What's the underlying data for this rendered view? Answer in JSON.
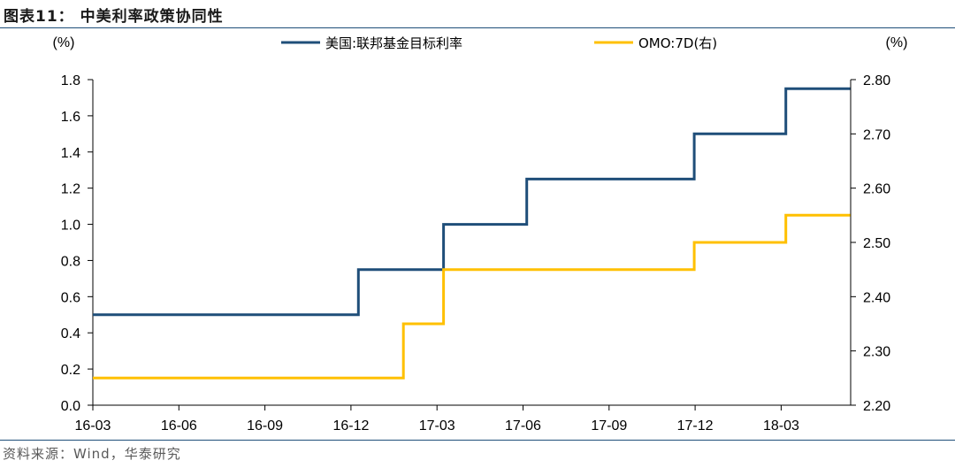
{
  "figure": {
    "title": "图表11： 中美利率政策协同性",
    "source": "资料来源：Wind，华泰研究"
  },
  "colors": {
    "series1": "#1f4e79",
    "series2": "#ffc000",
    "axis": "#000000",
    "rule": "#1f4e79"
  },
  "chart_data": {
    "type": "line",
    "step": true,
    "y_left_unit": "(%)",
    "y_right_unit": "(%)",
    "ylim_left": [
      0,
      1.8
    ],
    "ylim_right": [
      2.2,
      2.8
    ],
    "y_left_ticks": [
      "1.8",
      "1.6",
      "1.4",
      "1.2",
      "1.0",
      "0.8",
      "0.6",
      "0.4",
      "0.2",
      "0.0"
    ],
    "y_right_ticks": [
      "2.80",
      "2.70",
      "2.60",
      "2.50",
      "2.40",
      "2.30",
      "2.20"
    ],
    "x_ticks": [
      "16-03",
      "16-06",
      "16-09",
      "16-12",
      "17-03",
      "17-06",
      "17-09",
      "17-12",
      "18-03"
    ],
    "x_range": [
      "2016-03",
      "2018-05"
    ],
    "legend_position": "top",
    "grid": false,
    "series": [
      {
        "name": "美国:联邦基金目标利率",
        "axis": "left",
        "color": "#1f4e79",
        "points": [
          [
            "2016-03-01",
            0.5
          ],
          [
            "2016-12-15",
            0.75
          ],
          [
            "2017-03-16",
            1.0
          ],
          [
            "2017-06-15",
            1.25
          ],
          [
            "2017-12-14",
            1.5
          ],
          [
            "2018-03-22",
            1.75
          ],
          [
            "2018-05-31",
            1.75
          ]
        ]
      },
      {
        "name": "OMO:7D(右)",
        "axis": "right",
        "color": "#ffc000",
        "points": [
          [
            "2016-03-01",
            2.25
          ],
          [
            "2017-02-03",
            2.35
          ],
          [
            "2017-03-16",
            2.45
          ],
          [
            "2017-12-14",
            2.5
          ],
          [
            "2018-03-22",
            2.55
          ],
          [
            "2018-05-31",
            2.55
          ]
        ]
      }
    ]
  }
}
